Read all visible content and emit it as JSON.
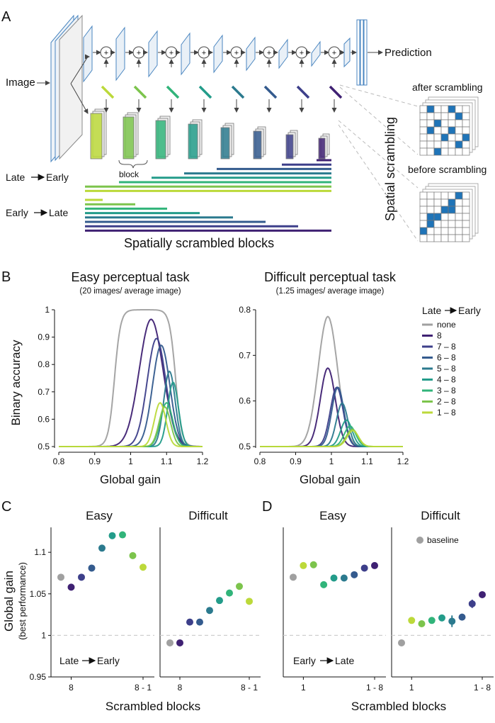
{
  "panel_labels": {
    "a": "A",
    "b": "B",
    "c": "C",
    "d": "D"
  },
  "colors": {
    "none": "#a0a0a0",
    "s8": "#3f2173",
    "s78": "#3d3f8a",
    "s68": "#345b8e",
    "s58": "#2b7a8e",
    "s48": "#239c8a",
    "s38": "#31b47a",
    "s28": "#7cc44c",
    "s18": "#bcd93a",
    "block_blue": "#1f74b8"
  },
  "panel_a": {
    "image_label": "Image",
    "prediction_label": "Prediction",
    "block_label": "block",
    "late_early_label": "Late",
    "late_early_label_b": "Early",
    "early_late_label": "Early",
    "early_late_label_b": "Late",
    "bottom_caption": "Spatially scrambled blocks",
    "side_title": "Spatial scrambling",
    "after_label": "after scrambling",
    "before_label": "before scrambling",
    "plus": "+"
  },
  "chart_data": [
    {
      "id": "B-easy",
      "type": "line",
      "title": "Easy perceptual task",
      "subtitle": "(20 images/ average image)",
      "xlabel": "Global gain",
      "ylabel": "Binary accuracy",
      "xlim": [
        0.8,
        1.2
      ],
      "ylim": [
        0.5,
        1.0
      ],
      "xticks": [
        "0.8",
        "0.9",
        "1",
        "1.1",
        "1.2"
      ],
      "yticks": [
        "0.5",
        "0.6",
        "0.7",
        "0.8",
        "0.9",
        "1"
      ],
      "series": [
        {
          "name": "none",
          "color": "#a0a0a0",
          "peak_x": 1.04,
          "peak_y": 1.0,
          "shape": "plateau"
        },
        {
          "name": "8",
          "color": "#3f2173",
          "peak_x": 1.057,
          "peak_y": 0.965
        },
        {
          "name": "7 – 8",
          "color": "#3d3f8a",
          "peak_x": 1.072,
          "peak_y": 0.895
        },
        {
          "name": "6 – 8",
          "color": "#345b8e",
          "peak_x": 1.085,
          "peak_y": 0.87
        },
        {
          "name": "5 – 8",
          "color": "#2b7a8e",
          "peak_x": 1.108,
          "peak_y": 0.775
        },
        {
          "name": "4 – 8",
          "color": "#239c8a",
          "peak_x": 1.118,
          "peak_y": 0.735
        },
        {
          "name": "3 – 8",
          "color": "#31b47a",
          "peak_x": 1.1,
          "peak_y": 0.66
        },
        {
          "name": "2 – 8",
          "color": "#7cc44c",
          "peak_x": 1.095,
          "peak_y": 0.645
        },
        {
          "name": "1 – 8",
          "color": "#bcd93a",
          "peak_x": 1.082,
          "peak_y": 0.66
        }
      ]
    },
    {
      "id": "B-difficult",
      "type": "line",
      "title": "Difficult perceptual task",
      "subtitle": "(1.25 images/ average image)",
      "xlabel": "Global gain",
      "xlim": [
        0.8,
        1.2
      ],
      "ylim": [
        0.5,
        0.8
      ],
      "xticks": [
        "0.8",
        "0.9",
        "1",
        "1.1",
        "1.2"
      ],
      "yticks": [
        "0.5",
        "0.6",
        "0.7",
        "0.8"
      ],
      "legend_title_a": "Late",
      "legend_title_b": "Early",
      "series": [
        {
          "name": "none",
          "color": "#a0a0a0",
          "peak_x": 0.99,
          "peak_y": 0.785
        },
        {
          "name": "8",
          "color": "#3f2173",
          "peak_x": 0.99,
          "peak_y": 0.672
        },
        {
          "name": "7 – 8",
          "color": "#3d3f8a",
          "peak_x": 1.015,
          "peak_y": 0.63
        },
        {
          "name": "6 – 8",
          "color": "#345b8e",
          "peak_x": 1.018,
          "peak_y": 0.63
        },
        {
          "name": "5 – 8",
          "color": "#2b7a8e",
          "peak_x": 1.03,
          "peak_y": 0.595
        },
        {
          "name": "4 – 8",
          "color": "#239c8a",
          "peak_x": 1.042,
          "peak_y": 0.558
        },
        {
          "name": "3 – 8",
          "color": "#31b47a",
          "peak_x": 1.052,
          "peak_y": 0.545
        },
        {
          "name": "2 – 8",
          "color": "#7cc44c",
          "peak_x": 1.058,
          "peak_y": 0.538
        },
        {
          "name": "1 – 8",
          "color": "#bcd93a",
          "peak_x": 1.06,
          "peak_y": 0.535
        }
      ]
    },
    {
      "id": "C-easy",
      "type": "scatter",
      "title": "Easy",
      "ylabel": "Global gain",
      "ylabel2": "(best performance)",
      "ylim": [
        0.95,
        1.13
      ],
      "yticks": [
        "0.95",
        "1",
        "1.05",
        "1.1"
      ],
      "xticks": [
        "8",
        "8 - 1"
      ],
      "annotation_a": "Late",
      "annotation_b": "Early",
      "points": [
        {
          "label": "baseline",
          "color": "#a0a0a0",
          "y": 1.07
        },
        {
          "label": "8",
          "color": "#3f2173",
          "y": 1.058
        },
        {
          "label": "7-8",
          "color": "#3d3f8a",
          "y": 1.07
        },
        {
          "label": "6-8",
          "color": "#345b8e",
          "y": 1.081
        },
        {
          "label": "5-8",
          "color": "#2b7a8e",
          "y": 1.105
        },
        {
          "label": "4-8",
          "color": "#239c8a",
          "y": 1.12
        },
        {
          "label": "3-8",
          "color": "#31b47a",
          "y": 1.121
        },
        {
          "label": "2-8",
          "color": "#7cc44c",
          "y": 1.096
        },
        {
          "label": "1-8",
          "color": "#bcd93a",
          "y": 1.082
        }
      ]
    },
    {
      "id": "C-difficult",
      "type": "scatter",
      "title": "Difficult",
      "ylim": [
        0.95,
        1.13
      ],
      "xticks": [
        "8",
        "8 - 1"
      ],
      "points": [
        {
          "label": "baseline",
          "color": "#a0a0a0",
          "y": 0.991
        },
        {
          "label": "8",
          "color": "#3f2173",
          "y": 0.991
        },
        {
          "label": "7-8",
          "color": "#3d3f8a",
          "y": 1.016
        },
        {
          "label": "6-8",
          "color": "#345b8e",
          "y": 1.016
        },
        {
          "label": "5-8",
          "color": "#2b7a8e",
          "y": 1.03
        },
        {
          "label": "4-8",
          "color": "#239c8a",
          "y": 1.042
        },
        {
          "label": "3-8",
          "color": "#31b47a",
          "y": 1.051,
          "err": 0.004
        },
        {
          "label": "2-8",
          "color": "#7cc44c",
          "y": 1.059,
          "err": 0.004
        },
        {
          "label": "1-8",
          "color": "#bcd93a",
          "y": 1.041,
          "err": 0.003
        }
      ]
    },
    {
      "id": "D-easy",
      "type": "scatter",
      "title": "Easy",
      "ylim": [
        0.95,
        1.13
      ],
      "xticks": [
        "1",
        "1 - 8"
      ],
      "annotation_a": "Early",
      "annotation_b": "Late",
      "points": [
        {
          "label": "baseline",
          "color": "#a0a0a0",
          "y": 1.07
        },
        {
          "label": "1",
          "color": "#bcd93a",
          "y": 1.084
        },
        {
          "label": "1-2",
          "color": "#7cc44c",
          "y": 1.085
        },
        {
          "label": "1-3",
          "color": "#31b47a",
          "y": 1.061
        },
        {
          "label": "1-4",
          "color": "#239c8a",
          "y": 1.069
        },
        {
          "label": "1-5",
          "color": "#2b7a8e",
          "y": 1.069
        },
        {
          "label": "1-6",
          "color": "#345b8e",
          "y": 1.073
        },
        {
          "label": "1-7",
          "color": "#3d3f8a",
          "y": 1.081
        },
        {
          "label": "1-8",
          "color": "#3f2173",
          "y": 1.084
        }
      ]
    },
    {
      "id": "D-difficult",
      "type": "scatter",
      "title": "Difficult",
      "ylim": [
        0.95,
        1.13
      ],
      "xticks": [
        "1",
        "1 - 8"
      ],
      "legend_label": "baseline",
      "points": [
        {
          "label": "baseline",
          "color": "#a0a0a0",
          "y": 0.991
        },
        {
          "label": "1",
          "color": "#bcd93a",
          "y": 1.018
        },
        {
          "label": "1-2",
          "color": "#7cc44c",
          "y": 1.014
        },
        {
          "label": "1-3",
          "color": "#31b47a",
          "y": 1.018
        },
        {
          "label": "1-4",
          "color": "#239c8a",
          "y": 1.021
        },
        {
          "label": "1-5",
          "color": "#2b7a8e",
          "y": 1.017,
          "err": 0.007
        },
        {
          "label": "1-6",
          "color": "#345b8e",
          "y": 1.022,
          "err": 0.004
        },
        {
          "label": "1-7",
          "color": "#3d3f8a",
          "y": 1.038,
          "err": 0.005
        },
        {
          "label": "1-8",
          "color": "#3f2173",
          "y": 1.049,
          "err": 0.003
        }
      ]
    }
  ],
  "shared_xlabel": "Scrambled blocks"
}
